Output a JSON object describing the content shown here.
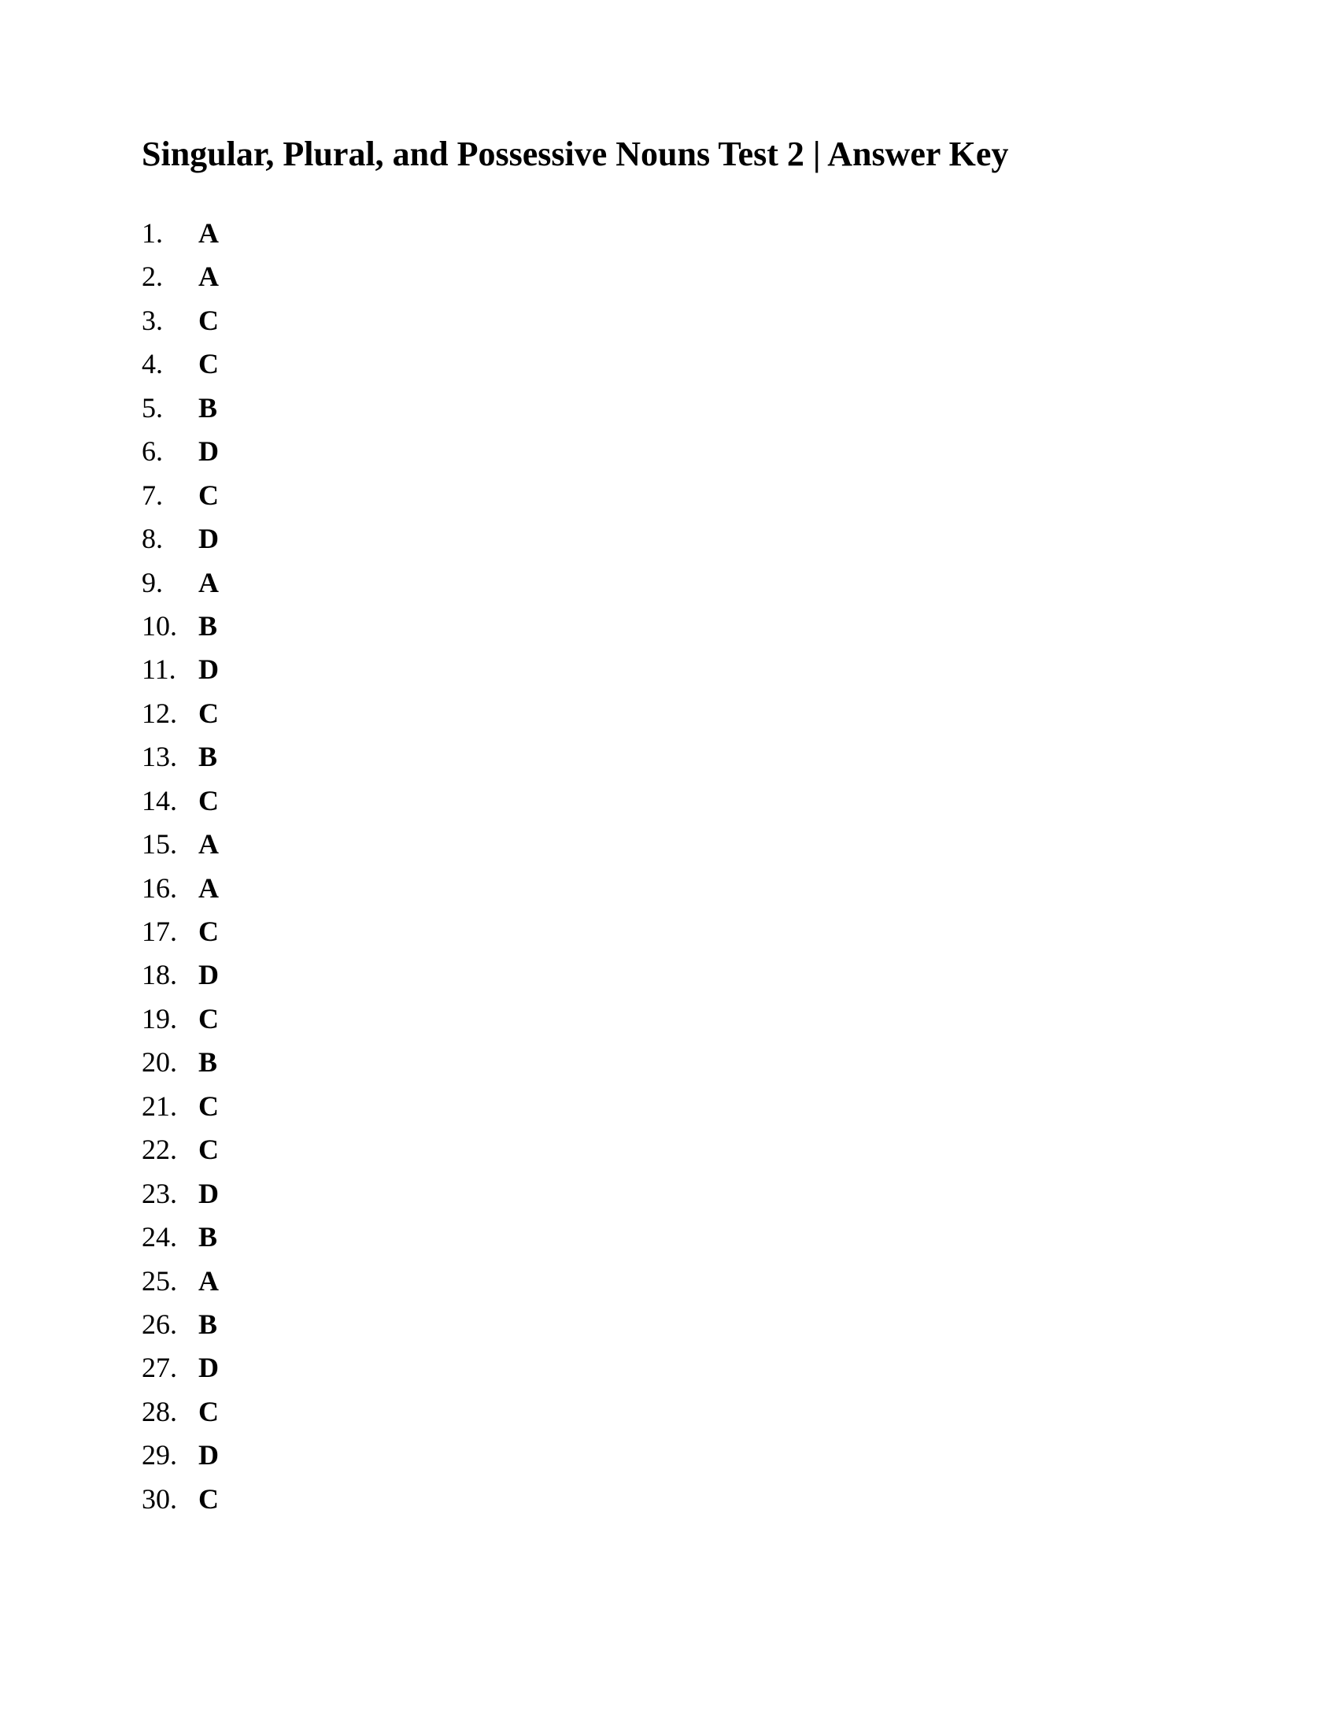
{
  "title": "Singular, Plural, and Possessive Nouns Test 2 | Answer Key",
  "font_family": "Times New Roman",
  "title_fontsize": 44,
  "body_fontsize": 36,
  "text_color": "#000000",
  "background_color": "#ffffff",
  "answers": [
    {
      "num": "1.",
      "val": "A"
    },
    {
      "num": "2.",
      "val": "A"
    },
    {
      "num": "3.",
      "val": "C"
    },
    {
      "num": "4.",
      "val": "C"
    },
    {
      "num": "5.",
      "val": "B"
    },
    {
      "num": "6.",
      "val": "D"
    },
    {
      "num": "7.",
      "val": "C"
    },
    {
      "num": "8.",
      "val": "D"
    },
    {
      "num": "9.",
      "val": "A"
    },
    {
      "num": "10.",
      "val": "B"
    },
    {
      "num": "11.",
      "val": "D"
    },
    {
      "num": "12.",
      "val": "C"
    },
    {
      "num": "13.",
      "val": "B"
    },
    {
      "num": "14.",
      "val": "C"
    },
    {
      "num": "15.",
      "val": "A"
    },
    {
      "num": "16.",
      "val": "A"
    },
    {
      "num": "17.",
      "val": "C"
    },
    {
      "num": "18.",
      "val": "D"
    },
    {
      "num": "19.",
      "val": "C"
    },
    {
      "num": "20.",
      "val": "B"
    },
    {
      "num": "21.",
      "val": "C"
    },
    {
      "num": "22.",
      "val": "C"
    },
    {
      "num": "23.",
      "val": "D"
    },
    {
      "num": "24.",
      "val": "B"
    },
    {
      "num": "25.",
      "val": "A"
    },
    {
      "num": "26.",
      "val": "B"
    },
    {
      "num": "27.",
      "val": "D"
    },
    {
      "num": "28.",
      "val": "C"
    },
    {
      "num": "29.",
      "val": "D"
    },
    {
      "num": "30.",
      "val": "C"
    }
  ]
}
